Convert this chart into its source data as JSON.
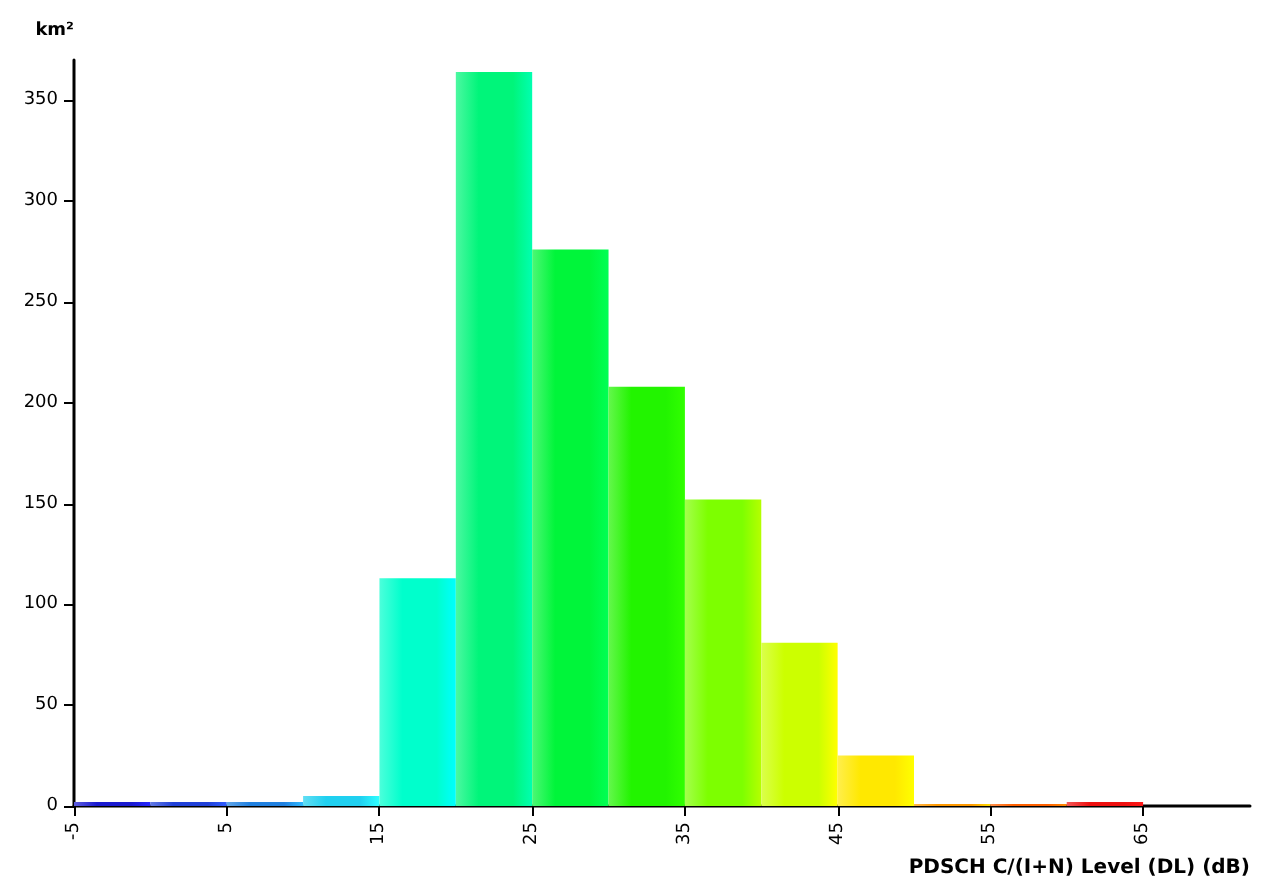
{
  "chart_data": {
    "type": "histogram",
    "xlabel": "PDSCH C/(I+N) Level (DL) (dB)",
    "ylabel": "km²",
    "bins": [
      -5,
      0,
      5,
      10,
      15,
      20,
      25,
      30,
      35,
      40,
      45,
      50,
      55,
      60,
      65
    ],
    "values": [
      2,
      2,
      2,
      5,
      113,
      364,
      276,
      208,
      152,
      81,
      25,
      1,
      1,
      2
    ],
    "colors": [
      "#1a1ad0",
      "#2040d8",
      "#2080e0",
      "#20d0f0",
      "#00ffcc",
      "#00f57a",
      "#00f53a",
      "#22f400",
      "#7dff00",
      "#ccff00",
      "#ffe800",
      "#ff9900",
      "#ff6000",
      "#ee1010"
    ],
    "xlim": [
      -5,
      72
    ],
    "xticks": [
      -5,
      5,
      15,
      25,
      35,
      45,
      55,
      65
    ],
    "ylim": [
      0,
      370
    ],
    "yticks": [
      0,
      50,
      100,
      150,
      200,
      250,
      300,
      350
    ],
    "grid": false
  }
}
